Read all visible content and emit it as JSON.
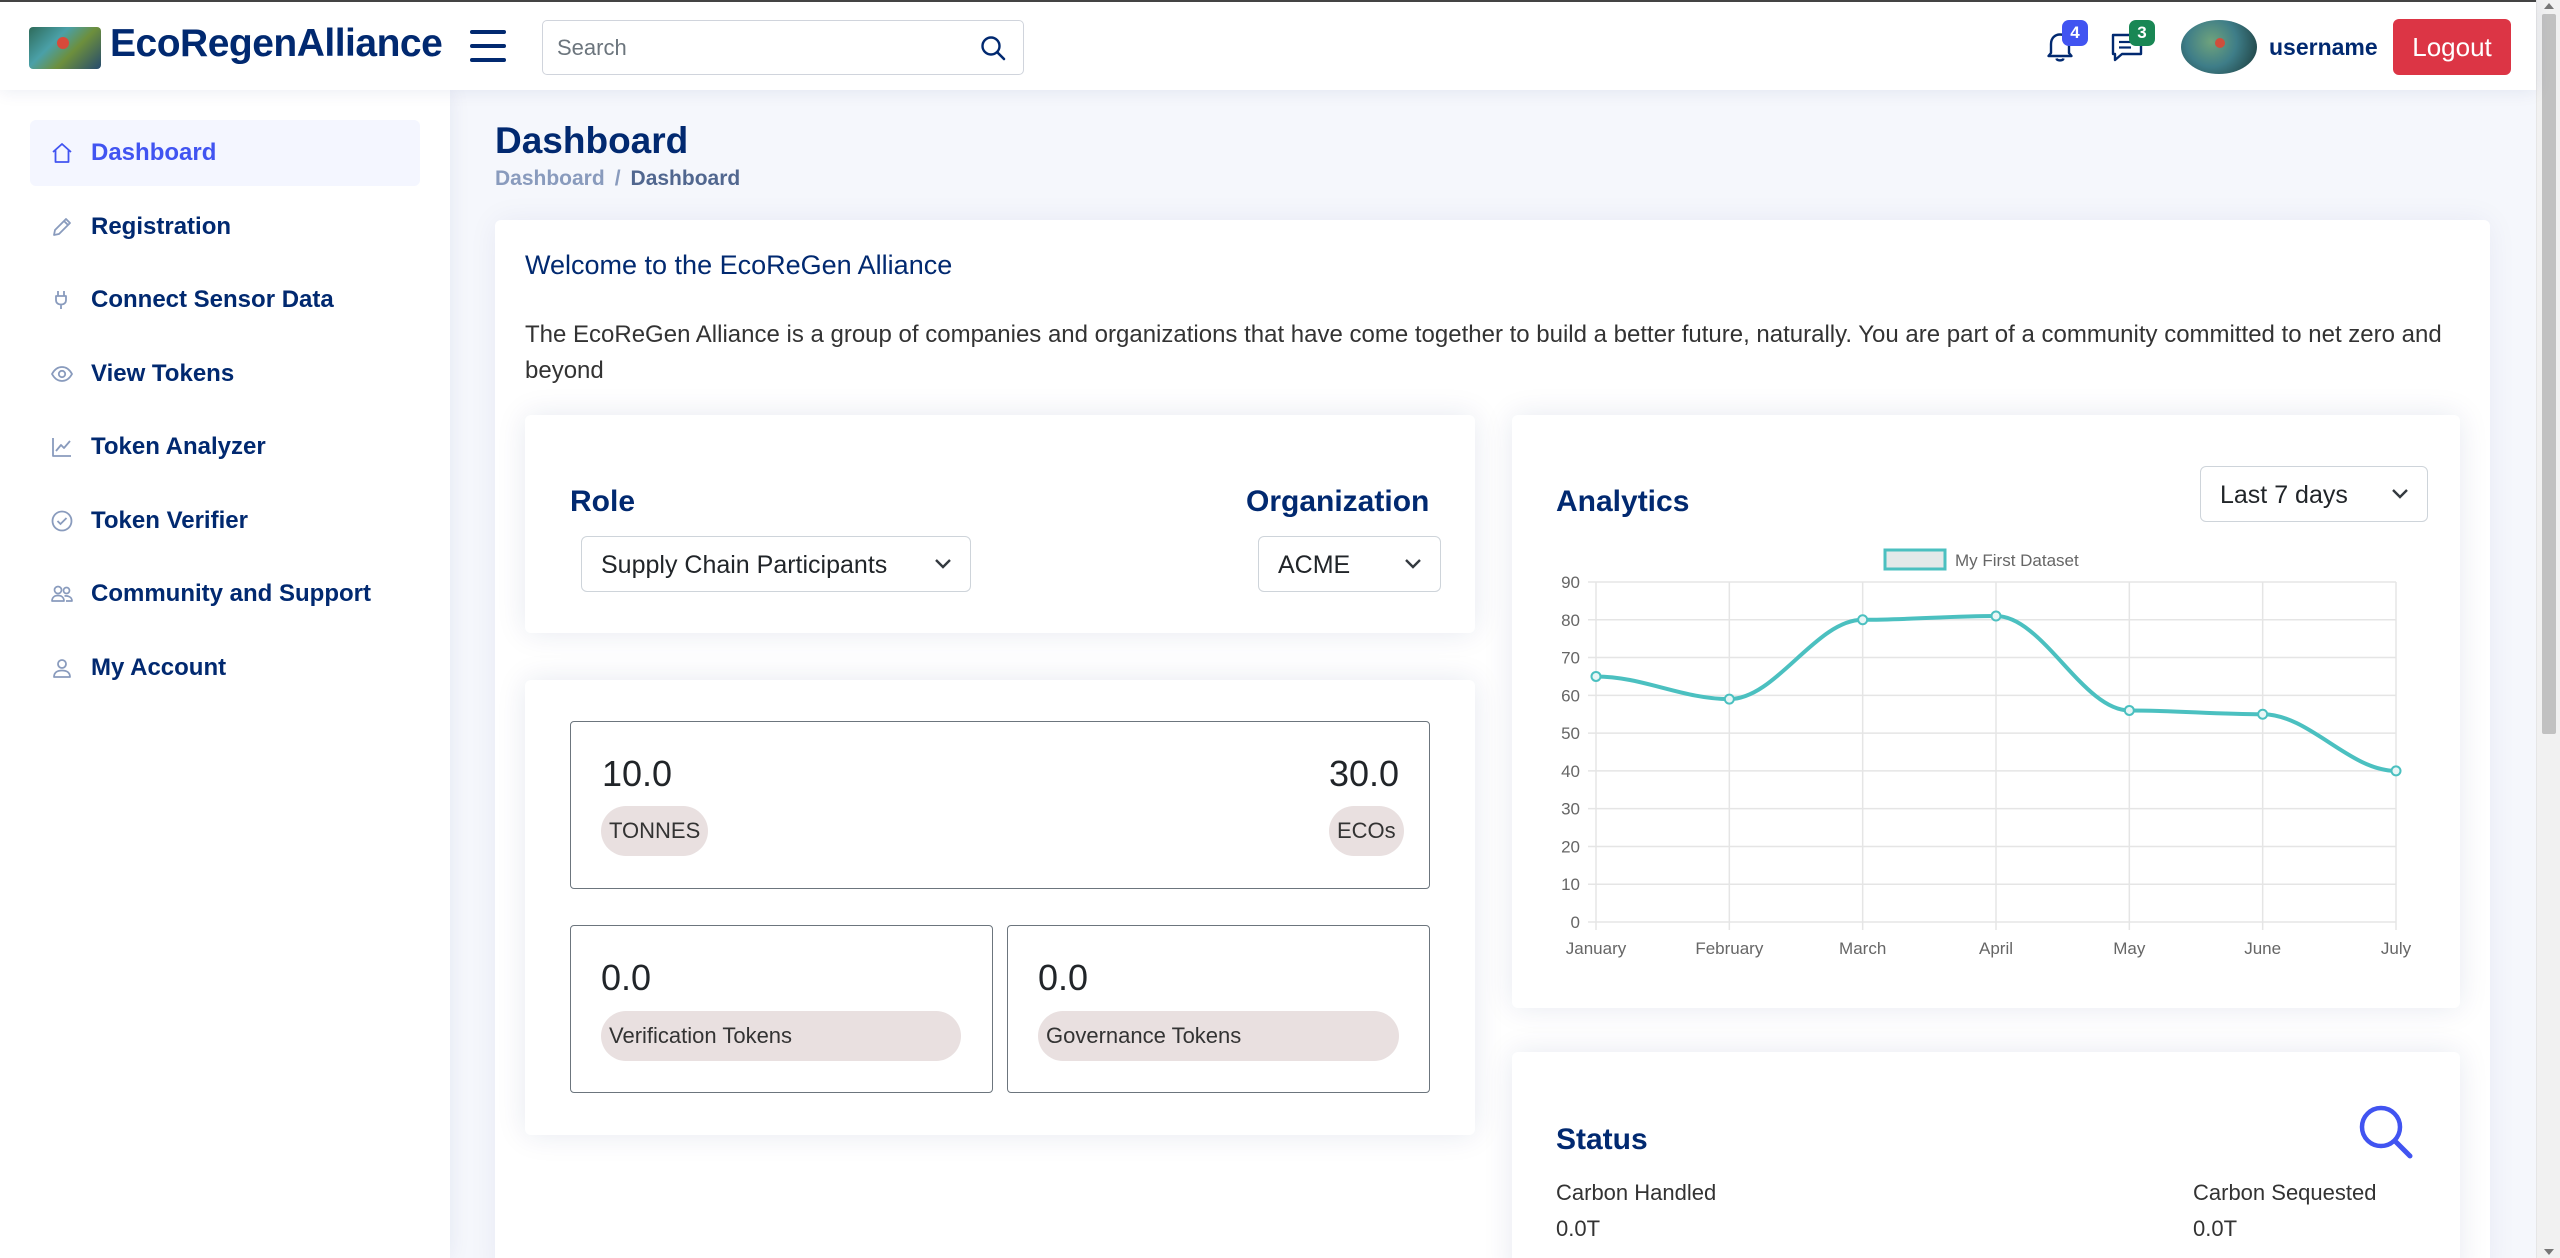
{
  "header": {
    "brand": "EcoRegenAlliance",
    "search_placeholder": "Search",
    "notifications_count": "4",
    "messages_count": "3",
    "username": "username",
    "logout_label": "Logout",
    "colors": {
      "brand": "#012970",
      "accent": "#4154f1",
      "logout": "#dc3545",
      "messages_badge": "#198754"
    }
  },
  "sidebar": {
    "items": [
      {
        "label": "Dashboard",
        "icon": "house-icon",
        "active": true
      },
      {
        "label": "Registration",
        "icon": "pencil-icon"
      },
      {
        "label": "Connect Sensor Data",
        "icon": "plug-icon"
      },
      {
        "label": "View Tokens",
        "icon": "eye-icon"
      },
      {
        "label": "Token Analyzer",
        "icon": "graph-up-icon"
      },
      {
        "label": "Token Verifier",
        "icon": "check-circle-icon"
      },
      {
        "label": "Community and Support",
        "icon": "people-icon"
      },
      {
        "label": "My Account",
        "icon": "person-icon"
      }
    ]
  },
  "page": {
    "title": "Dashboard",
    "breadcrumb": [
      "Dashboard",
      "Dashboard"
    ]
  },
  "welcome": {
    "title": "Welcome to the EcoReGen Alliance",
    "text": "The EcoReGen Alliance is a group of companies and organizations that have come together to build a better future, naturally. You are part of a community committed to net zero and beyond"
  },
  "filters": {
    "role_label": "Role",
    "role_value": "Supply Chain Participants",
    "org_label": "Organization",
    "org_value": "ACME"
  },
  "tokens": {
    "tonnes_value": "10.0",
    "tonnes_label": "TONNES",
    "ecos_value": "30.0",
    "ecos_label": "ECOs",
    "verification_value": "0.0",
    "verification_label": "Verification Tokens",
    "governance_value": "0.0",
    "governance_label": "Governance Tokens"
  },
  "analytics": {
    "title": "Analytics",
    "range_value": "Last 7 days"
  },
  "chart_data": {
    "type": "line",
    "categories": [
      "January",
      "February",
      "March",
      "April",
      "May",
      "June",
      "July"
    ],
    "series": [
      {
        "name": "My First Dataset",
        "values": [
          65,
          59,
          80,
          81,
          56,
          55,
          40
        ],
        "color": "#4bc0c0"
      }
    ],
    "ylim": [
      0,
      90
    ],
    "yticks": [
      0,
      10,
      20,
      30,
      40,
      50,
      60,
      70,
      80,
      90
    ],
    "grid": true,
    "legend": "top-center"
  },
  "status": {
    "title": "Status",
    "carbon_handled_label": "Carbon Handled",
    "carbon_handled_value": "0.0T",
    "carbon_sequestered_label": "Carbon Sequested",
    "carbon_sequestered_value": "0.0T"
  }
}
